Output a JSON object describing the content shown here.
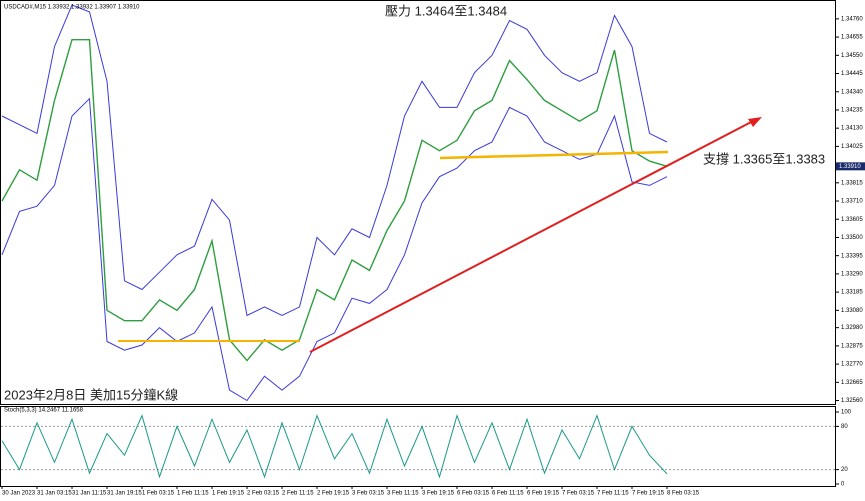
{
  "chart_data": [
    {
      "type": "line",
      "title": "USDCAD#,M15  1.33932 1.33932 1.33907 1.33910",
      "annotations": [
        "壓力 1.3464至1.3484",
        "支撐 1.3365至1.3383",
        "2023年2月8日 美加15分鐘K線"
      ],
      "categories": [
        "30 Jan 2023",
        null,
        "31 Jan 03:15",
        null,
        "31 Jan 11:15",
        null,
        "31 Jan 19:15",
        null,
        "1 Feb 03:15",
        null,
        "1 Feb 11:15",
        null,
        "1 Feb 19:15",
        null,
        "2 Feb 03:15",
        null,
        "2 Feb 11:15",
        null,
        "2 Feb 19:15",
        null,
        "3 Feb 03:15",
        null,
        "3 Feb 11:15",
        null,
        "3 Feb 19:15",
        null,
        "6 Feb 03:15",
        null,
        "6 Feb 11:15",
        null,
        "6 Feb 19:15",
        null,
        "7 Feb 03:15",
        null,
        "7 Feb 11:15",
        null,
        "7 Feb 19:15",
        null,
        "8 Feb 03:15"
      ],
      "series": [
        {
          "color": "#3a3adb",
          "values": [
            1.342,
            1.3415,
            1.341,
            1.346,
            1.3484,
            1.348,
            1.344,
            1.3325,
            1.332,
            1.333,
            1.334,
            1.3345,
            1.3372,
            1.336,
            1.3305,
            1.331,
            1.3305,
            1.331,
            1.335,
            1.334,
            1.3355,
            1.335,
            1.338,
            1.342,
            1.344,
            1.3425,
            1.3425,
            1.3445,
            1.3455,
            1.3475,
            1.347,
            1.3455,
            1.3445,
            1.344,
            1.3445,
            1.3478,
            1.346,
            1.341,
            1.3405
          ]
        },
        {
          "color": "#2e9e3e",
          "values": [
            1.3371,
            1.3389,
            1.3383,
            1.3429,
            1.3464,
            1.3464,
            1.3308,
            1.3302,
            1.3302,
            1.3314,
            1.3308,
            1.332,
            1.3348,
            1.3291,
            1.3279,
            1.3291,
            1.3285,
            1.3291,
            1.332,
            1.3314,
            1.3337,
            1.3331,
            1.3354,
            1.3371,
            1.3406,
            1.34,
            1.3406,
            1.3423,
            1.3429,
            1.3452,
            1.3441,
            1.3429,
            1.3423,
            1.3417,
            1.3423,
            1.3458,
            1.34,
            1.3394,
            1.3391
          ]
        },
        {
          "color": "#3a3adb",
          "values": [
            1.334,
            1.3365,
            1.3368,
            1.338,
            1.342,
            1.343,
            1.329,
            1.3285,
            1.3288,
            1.3298,
            1.329,
            1.3295,
            1.331,
            1.3262,
            1.3256,
            1.327,
            1.3262,
            1.327,
            1.329,
            1.3295,
            1.3315,
            1.3312,
            1.332,
            1.334,
            1.337,
            1.3385,
            1.339,
            1.34,
            1.3405,
            1.3425,
            1.342,
            1.3405,
            1.34,
            1.3395,
            1.3398,
            1.342,
            1.3382,
            1.338,
            1.3385
          ]
        }
      ],
      "ylim": [
        1.3254,
        1.3484
      ],
      "yticks": [
        {
          "value": 1.3476,
          "label": "1.34760"
        },
        {
          "value": 1.34655,
          "label": "1.34655"
        },
        {
          "value": 1.3455,
          "label": "1.34550"
        },
        {
          "value": 1.34445,
          "label": "1.34445"
        },
        {
          "value": 1.3434,
          "label": "1.34340"
        },
        {
          "value": 1.34235,
          "label": "1.34235"
        },
        {
          "value": 1.3413,
          "label": "1.34130"
        },
        {
          "value": 1.34025,
          "label": "1.34025"
        },
        {
          "value": 1.33815,
          "label": "1.33815"
        },
        {
          "value": 1.3371,
          "label": "1.33710"
        },
        {
          "value": 1.33605,
          "label": "1.33605"
        },
        {
          "value": 1.335,
          "label": "1.33500"
        },
        {
          "value": 1.33395,
          "label": "1.33395"
        },
        {
          "value": 1.3329,
          "label": "1.33290"
        },
        {
          "value": 1.33185,
          "label": "1.33185"
        },
        {
          "value": 1.3308,
          "label": "1.33080"
        },
        {
          "value": 1.3298,
          "label": "1.32980"
        },
        {
          "value": 1.32875,
          "label": "1.32875"
        },
        {
          "value": 1.3277,
          "label": "1.32770"
        },
        {
          "value": 1.32665,
          "label": "1.32665"
        },
        {
          "value": 1.3256,
          "label": "1.32560"
        }
      ],
      "current_price": {
        "value": 1.3391,
        "label": "1.33910"
      }
    },
    {
      "type": "line",
      "title": "Stoch(5,3,3) 14.2467 11.1658",
      "series": [
        {
          "color": "#1a9a8a",
          "values": [
            60,
            20,
            85,
            30,
            90,
            15,
            70,
            40,
            95,
            10,
            80,
            25,
            90,
            30,
            75,
            10,
            85,
            20,
            95,
            35,
            70,
            15,
            90,
            25,
            80,
            10,
            95,
            30,
            85,
            20,
            90,
            15,
            75,
            35,
            95,
            20,
            80,
            40,
            14
          ]
        }
      ],
      "ylim": [
        0,
        100
      ],
      "yticks": [
        0,
        20,
        80,
        100
      ]
    }
  ]
}
